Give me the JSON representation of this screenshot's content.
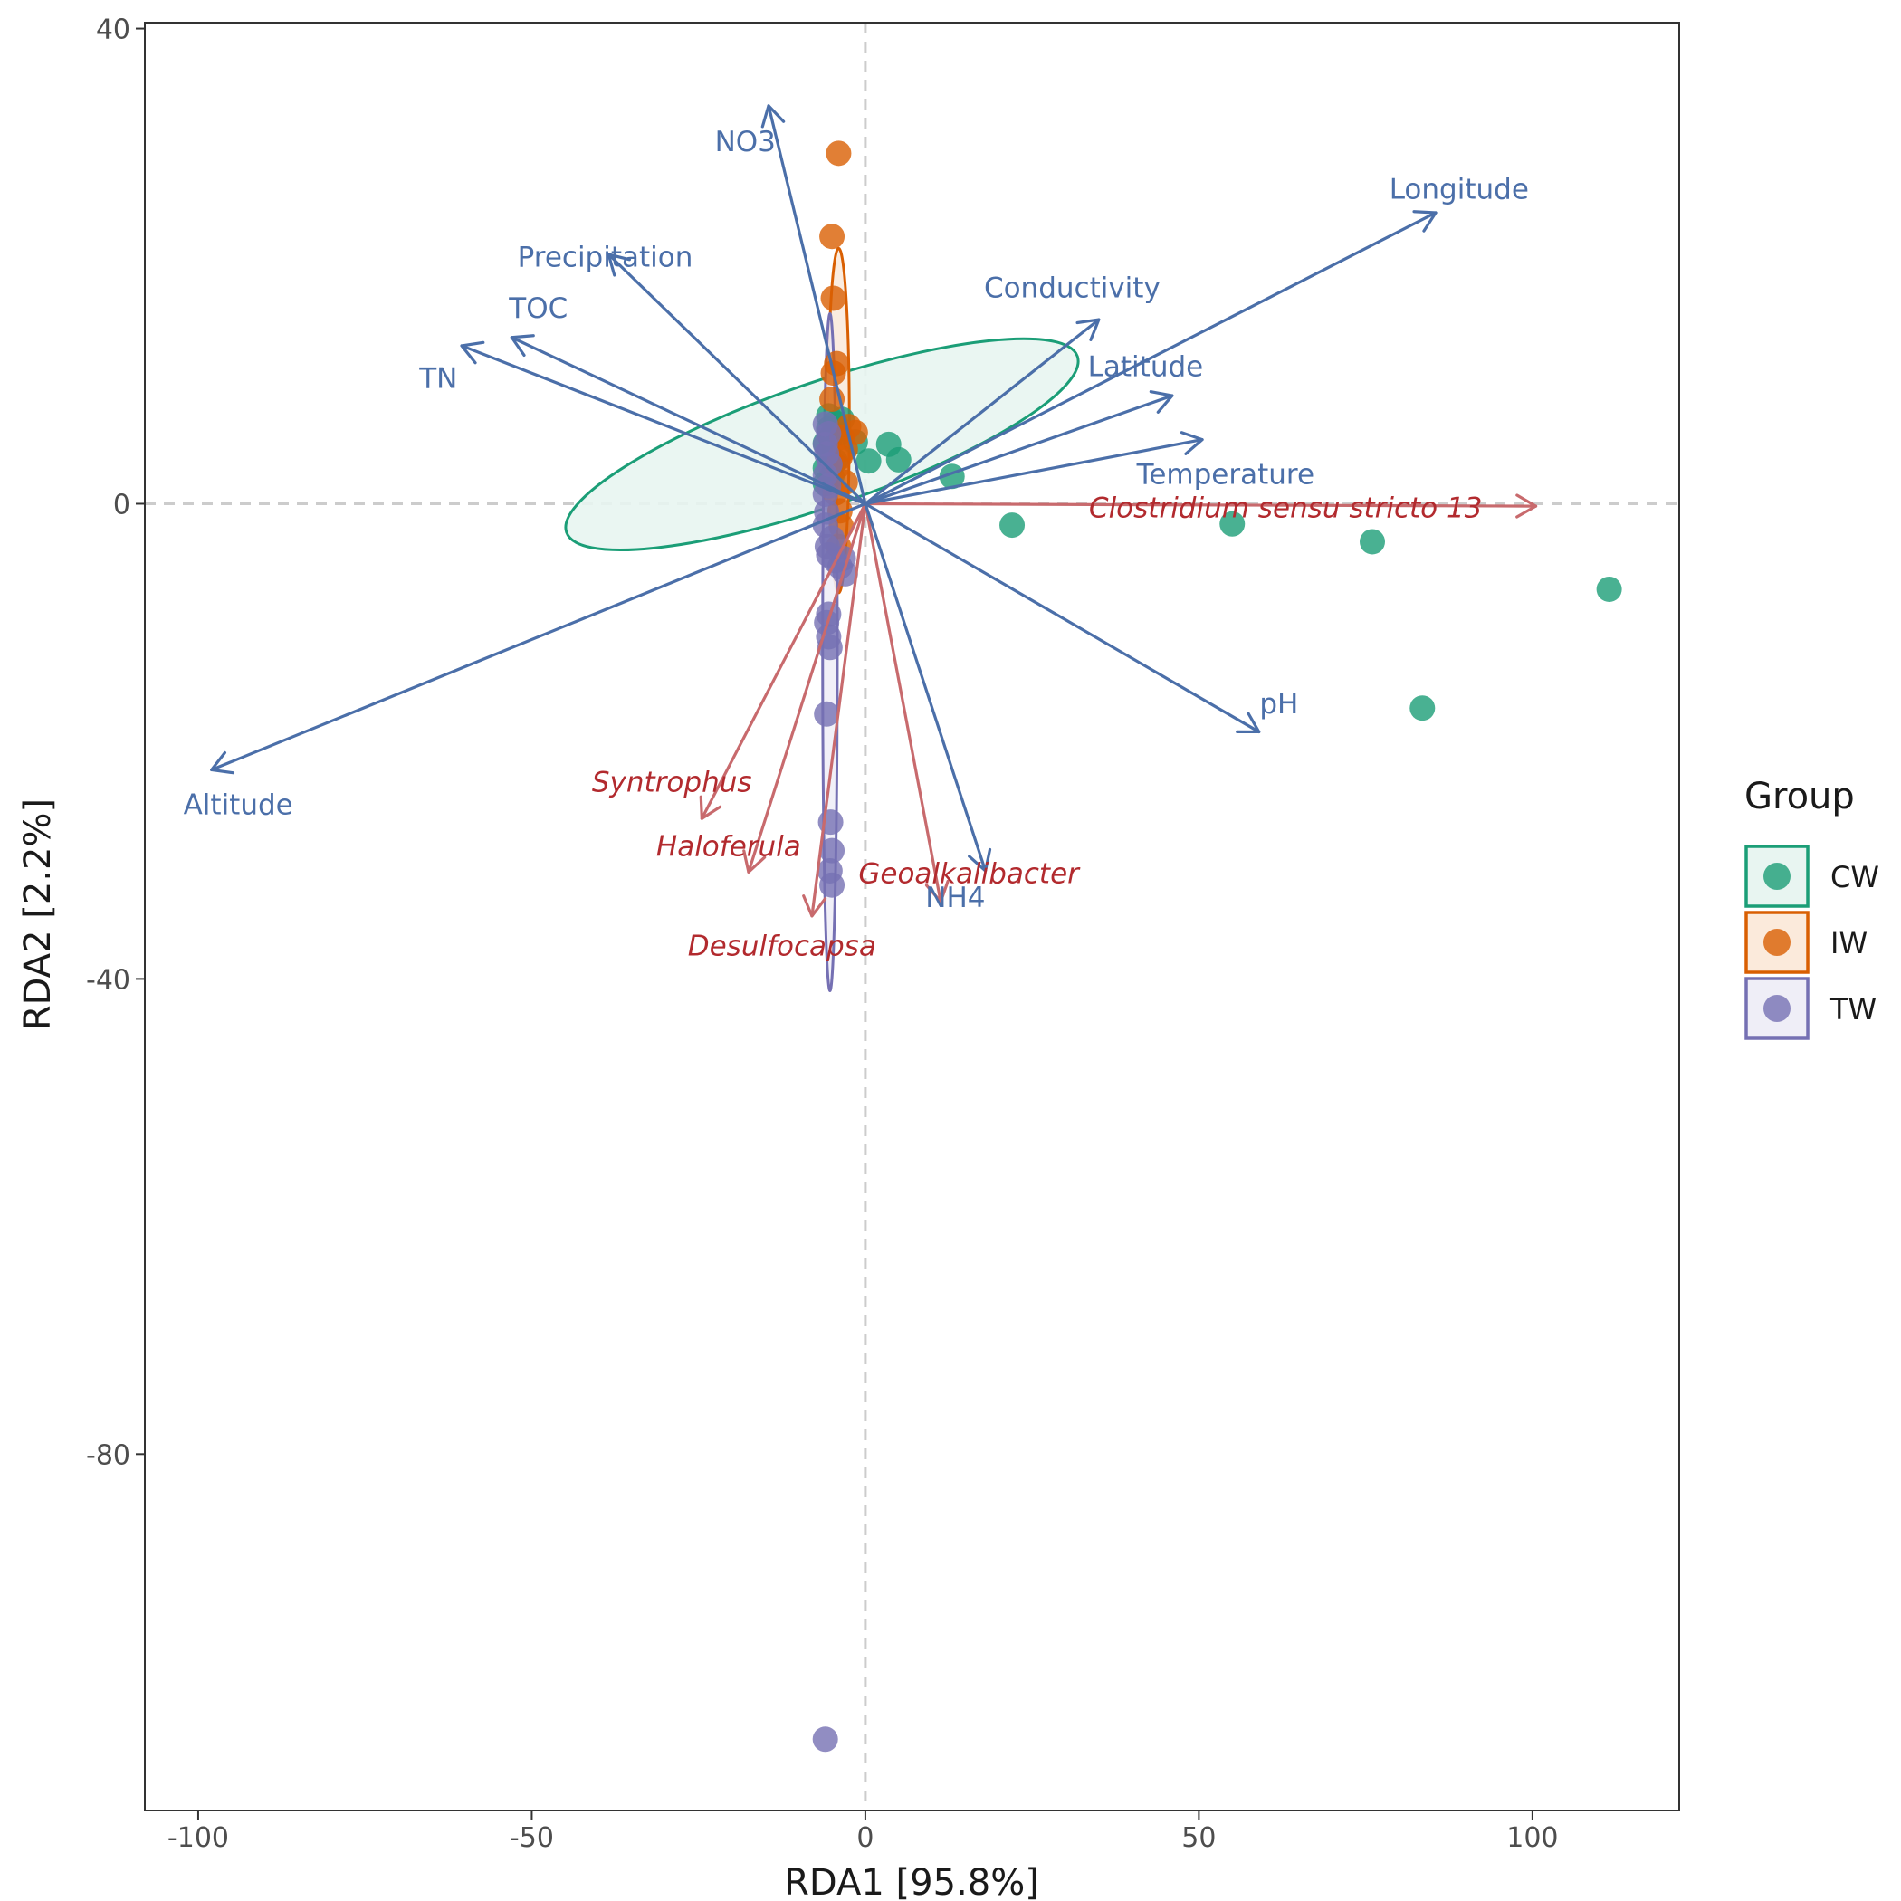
{
  "chart_data": {
    "type": "scatter",
    "subtype": "rda-biplot",
    "xlabel": "RDA1 [95.8%]",
    "ylabel": "RDA2 [2.2%]",
    "xlim": [
      -108,
      122
    ],
    "ylim": [
      -110,
      40.5
    ],
    "x_ticks": [
      -100,
      -50,
      0,
      50,
      100
    ],
    "y_ticks": [
      40,
      0,
      -40,
      -80
    ],
    "x_tick_labels": [
      "-100",
      "-50",
      "0",
      "50",
      "100"
    ],
    "y_tick_labels": [
      "40",
      "0",
      "-40",
      "-80"
    ],
    "reference_lines": {
      "x": 0,
      "y": 0,
      "style": "dashed",
      "color": "#cccccc"
    },
    "grid": false,
    "legend": {
      "title": "Group",
      "position": "right",
      "entries": [
        {
          "label": "CW",
          "color": "#1b9e77"
        },
        {
          "label": "IW",
          "color": "#d95f02"
        },
        {
          "label": "TW",
          "color": "#7570b3"
        }
      ]
    },
    "series": [
      {
        "name": "CW",
        "color": "#1b9e77",
        "points": [
          [
            111.5,
            -7.2
          ],
          [
            83.5,
            -17.2
          ],
          [
            76,
            -3.2
          ],
          [
            55,
            -1.7
          ],
          [
            22,
            -1.8
          ],
          [
            13,
            2.3
          ],
          [
            5,
            3.7
          ],
          [
            3.5,
            5.0
          ],
          [
            0.5,
            3.6
          ],
          [
            -1.5,
            5.2
          ],
          [
            -3.5,
            7.1
          ],
          [
            -4.5,
            6.8
          ],
          [
            -5.5,
            6.3
          ],
          [
            -5.2,
            5.6
          ],
          [
            -6,
            5.1
          ],
          [
            -5.5,
            4.3
          ],
          [
            -4.5,
            3.6
          ],
          [
            -6,
            3.0
          ],
          [
            -5,
            2.3
          ],
          [
            -6,
            1.7
          ],
          [
            -5.5,
            7.4
          ],
          [
            -4,
            5.9
          ]
        ],
        "ellipse": {
          "cx": -6.5,
          "cy": 5.0,
          "rx": 40.5,
          "ry": 5.2,
          "angle_deg": 19,
          "fill": "#e8f5f1"
        }
      },
      {
        "name": "IW",
        "color": "#d95f02",
        "points": [
          [
            -4,
            29.5
          ],
          [
            -5,
            22.5
          ],
          [
            -4.8,
            17.3
          ],
          [
            -4.3,
            11.8
          ],
          [
            -4.8,
            11.0
          ],
          [
            -5,
            8.8
          ],
          [
            -2.5,
            6.5
          ],
          [
            -1.5,
            6.0
          ],
          [
            -3.5,
            5.6
          ],
          [
            -3,
            4.6
          ],
          [
            -3.8,
            3.9
          ],
          [
            -4.2,
            3.1
          ],
          [
            -3,
            1.8
          ],
          [
            -4.5,
            0.9
          ],
          [
            -3.8,
            -0.6
          ],
          [
            -3.6,
            -1.9
          ],
          [
            -4,
            -3.6
          ]
        ],
        "ellipse": {
          "cx": -4.0,
          "cy": 7.0,
          "rx": 1.6,
          "ry": 14.5,
          "angle_deg": 0,
          "fill": "#fbeadb"
        }
      },
      {
        "name": "TW",
        "color": "#7570b3",
        "points": [
          [
            -6,
            -104
          ],
          [
            -5,
            -32.1
          ],
          [
            -5.3,
            -30.9
          ],
          [
            -5,
            -29.2
          ],
          [
            -5.2,
            -26.8
          ],
          [
            -5.8,
            -17.7
          ],
          [
            -5.3,
            -12.1
          ],
          [
            -5.5,
            -11.2
          ],
          [
            -5.8,
            -10.0
          ],
          [
            -5.5,
            -9.3
          ],
          [
            -3,
            -5.9
          ],
          [
            -3.8,
            -5.3
          ],
          [
            -4.5,
            -4.8
          ],
          [
            -5.5,
            -4.3
          ],
          [
            -3.3,
            -4.6
          ],
          [
            -5.7,
            -3.6
          ],
          [
            -5,
            -2.9
          ],
          [
            -6,
            -1.8
          ],
          [
            -5.8,
            -0.7
          ],
          [
            -6,
            0.8
          ],
          [
            -5.5,
            1.5
          ],
          [
            -6,
            2.4
          ],
          [
            -5.3,
            3.3
          ],
          [
            -5.8,
            4.2
          ],
          [
            -6,
            5.0
          ],
          [
            -5.5,
            5.9
          ],
          [
            -6,
            6.7
          ]
        ],
        "ellipse": {
          "cx": -5.3,
          "cy": -12.5,
          "rx": 1.1,
          "ry": 28.5,
          "angle_deg": 0,
          "fill": "#efeef7"
        }
      }
    ],
    "env_vectors": [
      {
        "name": "NO3",
        "x": -14.5,
        "y": 33.5,
        "lx": -18,
        "ly": 30.5
      },
      {
        "name": "Longitude",
        "x": 85.5,
        "y": 24.5,
        "lx": 89,
        "ly": 26.5
      },
      {
        "name": "Precipitation",
        "x": -38.5,
        "y": 21.0,
        "lx": -39,
        "ly": 20.8
      },
      {
        "name": "Conductivity",
        "x": 35,
        "y": 15.5,
        "lx": 31,
        "ly": 18.2
      },
      {
        "name": "TOC",
        "x": -53,
        "y": 14.0,
        "lx": -49,
        "ly": 16.5
      },
      {
        "name": "TN",
        "x": -60.5,
        "y": 13.3,
        "lx": -64,
        "ly": 10.6
      },
      {
        "name": "Latitude",
        "x": 46,
        "y": 9.1,
        "lx": 42,
        "ly": 11.6
      },
      {
        "name": "Temperature",
        "x": 50.5,
        "y": 5.4,
        "lx": 54,
        "ly": 2.5
      },
      {
        "name": "pH",
        "x": 59,
        "y": -19.2,
        "lx": 62,
        "ly": -16.8
      },
      {
        "name": "Altitude",
        "x": -98,
        "y": -22.4,
        "lx": -94,
        "ly": -25.3
      },
      {
        "name": "NH4",
        "x": 18,
        "y": -30.9,
        "lx": 13.5,
        "ly": -33.1
      }
    ],
    "taxa_vectors": [
      {
        "name": "Clostridium sensu stricto 13",
        "x": 100.5,
        "y": -0.2,
        "lx": 63,
        "ly": -0.3
      },
      {
        "name": "Syntrophus",
        "x": -24.5,
        "y": -26.5,
        "lx": -29,
        "ly": -23.4
      },
      {
        "name": "Haloferula",
        "x": -17.5,
        "y": -31.0,
        "lx": -20.5,
        "ly": -28.8
      },
      {
        "name": "Geoalkalibacter",
        "x": 11.3,
        "y": -33.5,
        "lx": 15.5,
        "ly": -31.1
      },
      {
        "name": "Desulfocapsa",
        "x": -8,
        "y": -34.7,
        "lx": -12.5,
        "ly": -37.2
      }
    ],
    "vector_colors": {
      "env": "#4b6fa9",
      "taxa_arrow": "#c86a6d",
      "taxa_label": "#b22a2e"
    }
  }
}
